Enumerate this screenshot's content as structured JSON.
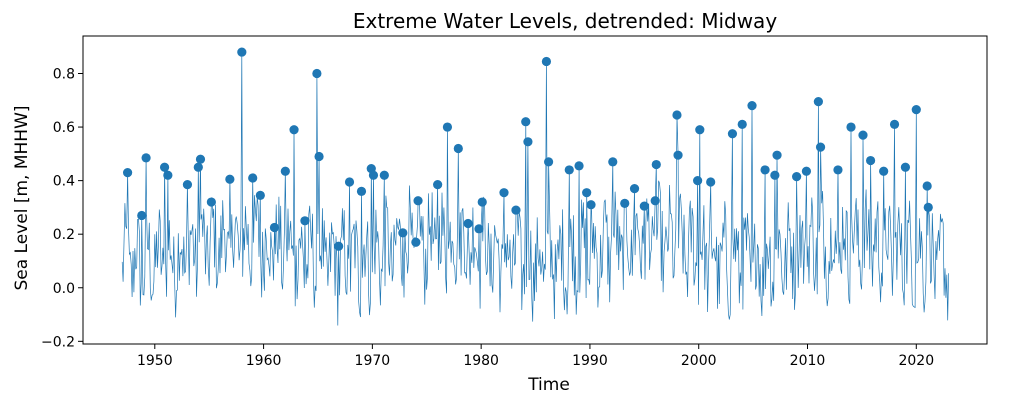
{
  "chart_data": {
    "type": "line",
    "title": "Extreme Water Levels, detrended: Midway",
    "xlabel": "Time",
    "ylabel": "Sea Level [m, MHHW]",
    "xlim": [
      1943.4,
      2026.5
    ],
    "ylim": [
      -0.21,
      0.94
    ],
    "xticks": [
      1950,
      1960,
      1970,
      1980,
      1990,
      2000,
      2010,
      2020
    ],
    "yticks": [
      -0.2,
      0.0,
      0.2,
      0.4,
      0.6,
      0.8
    ],
    "ytick_labels": [
      "−0.2",
      "0.0",
      "0.2",
      "0.4",
      "0.6",
      "0.8"
    ],
    "grid": false,
    "series_colors": {
      "line": "#1f77b4",
      "points": "#1f77b4"
    },
    "series": [
      {
        "type": "line",
        "x_start": 1947.0,
        "x_end": 2023.0,
        "x_step": 0.0833,
        "values_description_omitted": true
      },
      {
        "type": "scatter",
        "x": [
          1947.5,
          1948.8,
          1949.2,
          1950.9,
          1951.2,
          1953.0,
          1954.0,
          1954.2,
          1955.2,
          1956.9,
          1958.0,
          1959.0,
          1959.7,
          1961.0,
          1962.0,
          1962.8,
          1963.8,
          1964.9,
          1965.1,
          1966.9,
          1967.9,
          1969.0,
          1969.9,
          1970.1,
          1971.1,
          1972.8,
          1974.0,
          1974.2,
          1976.0,
          1976.9,
          1977.9,
          1978.8,
          1979.8,
          1980.1,
          1982.1,
          1983.2,
          1984.1,
          1984.3,
          1986.0,
          1986.2,
          1988.1,
          1989.0,
          1989.7,
          1990.1,
          1992.1,
          1993.2,
          1994.1,
          1995.0,
          1996.0,
          1996.1,
          1998.0,
          1998.1,
          1999.9,
          2000.1,
          2001.1,
          2003.1,
          2004.0,
          2004.9,
          2006.1,
          2007.0,
          2007.2,
          2009.0,
          2009.9,
          2011.0,
          2011.2,
          2012.8,
          2014.0,
          2015.1,
          2015.8,
          2017.0,
          2018.0,
          2019.0,
          2020.0,
          2021.0,
          2021.1
        ],
        "y": [
          0.43,
          0.27,
          0.485,
          0.45,
          0.42,
          0.385,
          0.45,
          0.48,
          0.32,
          0.405,
          0.88,
          0.41,
          0.345,
          0.225,
          0.435,
          0.59,
          0.25,
          0.8,
          0.49,
          0.155,
          0.395,
          0.36,
          0.445,
          0.42,
          0.42,
          0.205,
          0.17,
          0.325,
          0.385,
          0.6,
          0.52,
          0.24,
          0.22,
          0.32,
          0.355,
          0.29,
          0.62,
          0.545,
          0.845,
          0.47,
          0.44,
          0.455,
          0.355,
          0.31,
          0.47,
          0.315,
          0.37,
          0.305,
          0.325,
          0.46,
          0.645,
          0.495,
          0.4,
          0.59,
          0.395,
          0.575,
          0.61,
          0.68,
          0.44,
          0.42,
          0.495,
          0.415,
          0.435,
          0.695,
          0.525,
          0.44,
          0.6,
          0.57,
          0.475,
          0.435,
          0.61,
          0.45,
          0.665,
          0.38,
          0.3
        ]
      }
    ]
  }
}
